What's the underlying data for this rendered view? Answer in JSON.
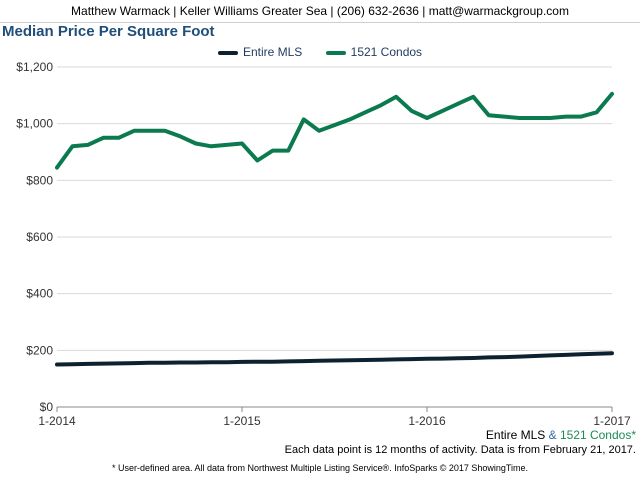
{
  "header": {
    "text": "Matthew Warmack | Keller Williams Greater Sea | (206) 632-2636 | matt@warmackgroup.com"
  },
  "chart_data": {
    "type": "line",
    "title": "Median Price Per Square Foot",
    "xlabel": "",
    "ylabel": "",
    "ylim": [
      0,
      1200
    ],
    "y_ticks": [
      "$0",
      "$200",
      "$400",
      "$600",
      "$800",
      "$1,000",
      "$1,200"
    ],
    "y_tick_values": [
      0,
      200,
      400,
      600,
      800,
      1000,
      1200
    ],
    "x_ticks": [
      "1-2014",
      "1-2015",
      "1-2016",
      "1-2017"
    ],
    "x": [
      "1-2014",
      "2-2014",
      "3-2014",
      "4-2014",
      "5-2014",
      "6-2014",
      "7-2014",
      "8-2014",
      "9-2014",
      "10-2014",
      "11-2014",
      "12-2014",
      "1-2015",
      "2-2015",
      "3-2015",
      "4-2015",
      "5-2015",
      "6-2015",
      "7-2015",
      "8-2015",
      "9-2015",
      "10-2015",
      "11-2015",
      "12-2015",
      "1-2016",
      "2-2016",
      "3-2016",
      "4-2016",
      "5-2016",
      "6-2016",
      "7-2016",
      "8-2016",
      "9-2016",
      "10-2016",
      "11-2016",
      "12-2016",
      "1-2017"
    ],
    "grid": "horizontal",
    "legend": "top-center",
    "series": [
      {
        "name": "Entire MLS",
        "color": "#0d2231",
        "values": [
          150,
          151,
          152,
          153,
          154,
          155,
          156,
          156,
          157,
          157,
          158,
          158,
          159,
          160,
          160,
          161,
          162,
          163,
          164,
          165,
          166,
          167,
          168,
          169,
          170,
          171,
          172,
          173,
          175,
          176,
          178,
          180,
          182,
          184,
          186,
          188,
          190
        ]
      },
      {
        "name": "1521 Condos",
        "color": "#0c7a4f",
        "values": [
          845,
          920,
          925,
          950,
          950,
          975,
          975,
          975,
          955,
          930,
          920,
          925,
          930,
          870,
          905,
          905,
          1015,
          975,
          995,
          1015,
          1040,
          1065,
          1095,
          1045,
          1020,
          1045,
          1070,
          1095,
          1030,
          1025,
          1020,
          1020,
          1020,
          1025,
          1025,
          1040,
          1105
        ]
      }
    ]
  },
  "footer": {
    "series_a": "Entire MLS",
    "ampersand": " & ",
    "series_b": "1521 Condos*",
    "note": "Each data point is 12 months of activity. Data is from February 21, 2017.",
    "disclaimer": "* User-defined area. All data from Northwest Multiple Listing Service®. InfoSparks © 2017 ShowingTime."
  }
}
